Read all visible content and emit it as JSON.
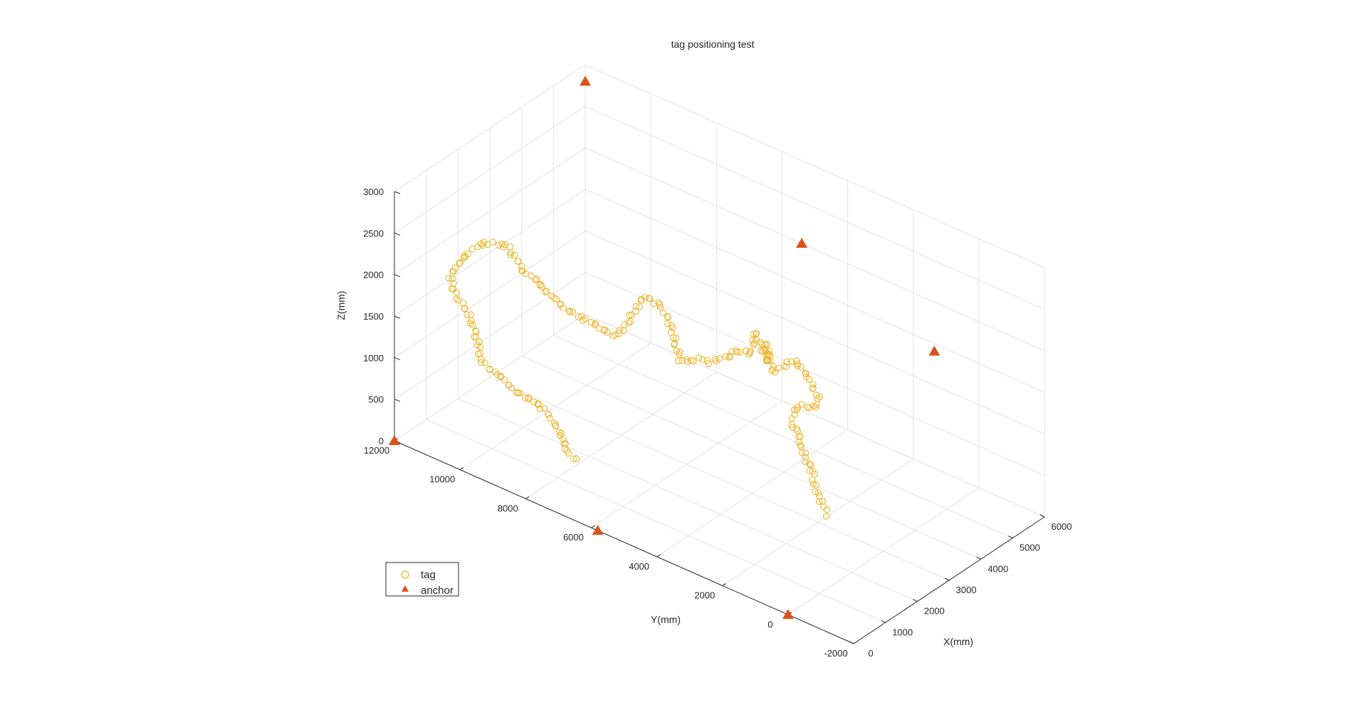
{
  "chart_data": {
    "type": "scatter3d",
    "title": "tag positioning test",
    "xlabel": "X(mm)",
    "ylabel": "Y(mm)",
    "zlabel": "Z(mm)",
    "xlim": [
      0,
      6000
    ],
    "ylim": [
      -2000,
      12000
    ],
    "zlim": [
      0,
      3000
    ],
    "xticks": [
      "0",
      "1000",
      "2000",
      "3000",
      "4000",
      "5000",
      "6000"
    ],
    "yticks": [
      "-2000",
      "0",
      "2000",
      "4000",
      "6000",
      "8000",
      "10000",
      "12000"
    ],
    "zticks": [
      "0",
      "500",
      "1000",
      "1500",
      "2000",
      "2500",
      "3000"
    ],
    "grid": true,
    "legend_position": "bottom-left",
    "colors": {
      "tag": "#EDB120",
      "anchor": "#D95319"
    },
    "series": [
      {
        "name": "tag",
        "marker": "circle-open",
        "path_points": [
          [
            1200,
            0,
            900
          ],
          [
            1250,
            150,
            1000
          ],
          [
            1150,
            300,
            1150
          ],
          [
            1300,
            500,
            1300
          ],
          [
            1250,
            700,
            1450
          ],
          [
            1350,
            900,
            1550
          ],
          [
            1400,
            1100,
            1650
          ],
          [
            1500,
            1300,
            1700
          ],
          [
            1700,
            1500,
            1750
          ],
          [
            1950,
            1550,
            1750
          ],
          [
            2300,
            1500,
            1650
          ],
          [
            2600,
            1600,
            1600
          ],
          [
            2900,
            1900,
            1550
          ],
          [
            3100,
            2400,
            1650
          ],
          [
            3200,
            2900,
            1750
          ],
          [
            3050,
            3400,
            1550
          ],
          [
            3200,
            3800,
            1800
          ],
          [
            3500,
            4000,
            1450
          ],
          [
            3600,
            4500,
            1700
          ],
          [
            3900,
            4900,
            1300
          ],
          [
            4000,
            5500,
            1200
          ],
          [
            4300,
            5900,
            1000
          ],
          [
            4500,
            6300,
            850
          ],
          [
            4550,
            6800,
            700
          ],
          [
            4700,
            7300,
            600
          ],
          [
            4800,
            7700,
            500
          ],
          [
            4900,
            8000,
            400
          ],
          [
            5000,
            8300,
            550
          ],
          [
            5100,
            8500,
            700
          ],
          [
            5050,
            8800,
            900
          ],
          [
            4900,
            9100,
            1000
          ],
          [
            4800,
            9300,
            850
          ],
          [
            4650,
            9500,
            600
          ],
          [
            4550,
            9700,
            500
          ],
          [
            4400,
            10000,
            600
          ],
          [
            4200,
            10400,
            700
          ],
          [
            3900,
            10600,
            850
          ],
          [
            3700,
            10750,
            1000
          ],
          [
            3500,
            10850,
            1150
          ],
          [
            3300,
            10950,
            1300
          ],
          [
            3100,
            11050,
            1400
          ],
          [
            2900,
            11100,
            1600
          ],
          [
            2700,
            11200,
            1800
          ],
          [
            2500,
            11300,
            1850
          ],
          [
            2300,
            11450,
            1900
          ],
          [
            2150,
            11600,
            1850
          ],
          [
            1950,
            11700,
            1800
          ],
          [
            1800,
            11800,
            1700
          ],
          [
            1600,
            11850,
            1600
          ],
          [
            1500,
            11600,
            1450
          ],
          [
            1600,
            11300,
            1250
          ],
          [
            1500,
            11000,
            1100
          ],
          [
            1300,
            10700,
            1050
          ],
          [
            1050,
            10400,
            1000
          ],
          [
            950,
            10000,
            950
          ],
          [
            850,
            9600,
            1000
          ],
          [
            800,
            9200,
            900
          ],
          [
            900,
            8800,
            850
          ],
          [
            1000,
            8400,
            750
          ],
          [
            950,
            8000,
            650
          ],
          [
            850,
            7700,
            550
          ],
          [
            700,
            7400,
            500
          ],
          [
            600,
            7000,
            450
          ]
        ]
      },
      {
        "name": "anchor",
        "marker": "triangle-filled",
        "x": [
          0,
          0,
          0,
          4600,
          6000,
          6000
        ],
        "y": [
          0,
          5800,
          12000,
          0,
          5400,
          12000
        ],
        "z": [
          0,
          0,
          0,
          2000,
          2000,
          2800
        ]
      }
    ]
  }
}
